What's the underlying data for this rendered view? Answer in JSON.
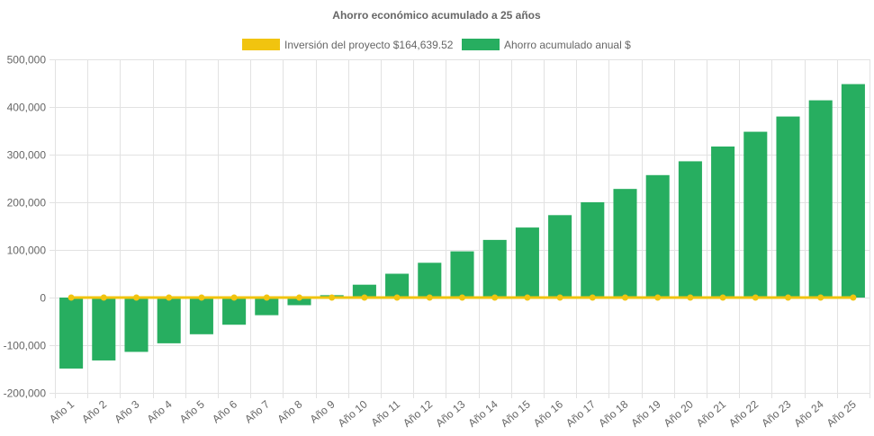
{
  "chart_data": {
    "type": "bar",
    "title": "Ahorro económico acumulado a 25 años",
    "categories": [
      "Año 1",
      "Año 2",
      "Año 3",
      "Año 4",
      "Año 5",
      "Año 6",
      "Año 7",
      "Año 8",
      "Año 9",
      "Año 10",
      "Año 11",
      "Año 12",
      "Año 13",
      "Año 14",
      "Año 15",
      "Año 16",
      "Año 17",
      "Año 18",
      "Año 19",
      "Año 20",
      "Año 21",
      "Año 22",
      "Año 23",
      "Año 24",
      "Año 25"
    ],
    "y_ticks": [
      "500,000",
      "400,000",
      "300,000",
      "200,000",
      "100,000",
      "0",
      "-100,000",
      "-200,000"
    ],
    "ylim": [
      -200000,
      500000
    ],
    "grid": true,
    "legend_position": "top",
    "series": [
      {
        "name": "Inversión del proyecto $164,639.52",
        "type": "line",
        "color": "#f1c40f",
        "values": [
          0,
          0,
          0,
          0,
          0,
          0,
          0,
          0,
          0,
          0,
          0,
          0,
          0,
          0,
          0,
          0,
          0,
          0,
          0,
          0,
          0,
          0,
          0,
          0,
          0
        ]
      },
      {
        "name": "Ahorro acumulado anual $",
        "type": "bar",
        "color": "#27ae60",
        "values": [
          -149000,
          -132000,
          -114000,
          -96000,
          -77000,
          -57000,
          -37000,
          -16000,
          5000,
          27000,
          50000,
          73000,
          97000,
          121000,
          147000,
          173000,
          200000,
          228000,
          257000,
          286000,
          317000,
          348000,
          380000,
          414000,
          448000
        ]
      }
    ]
  }
}
